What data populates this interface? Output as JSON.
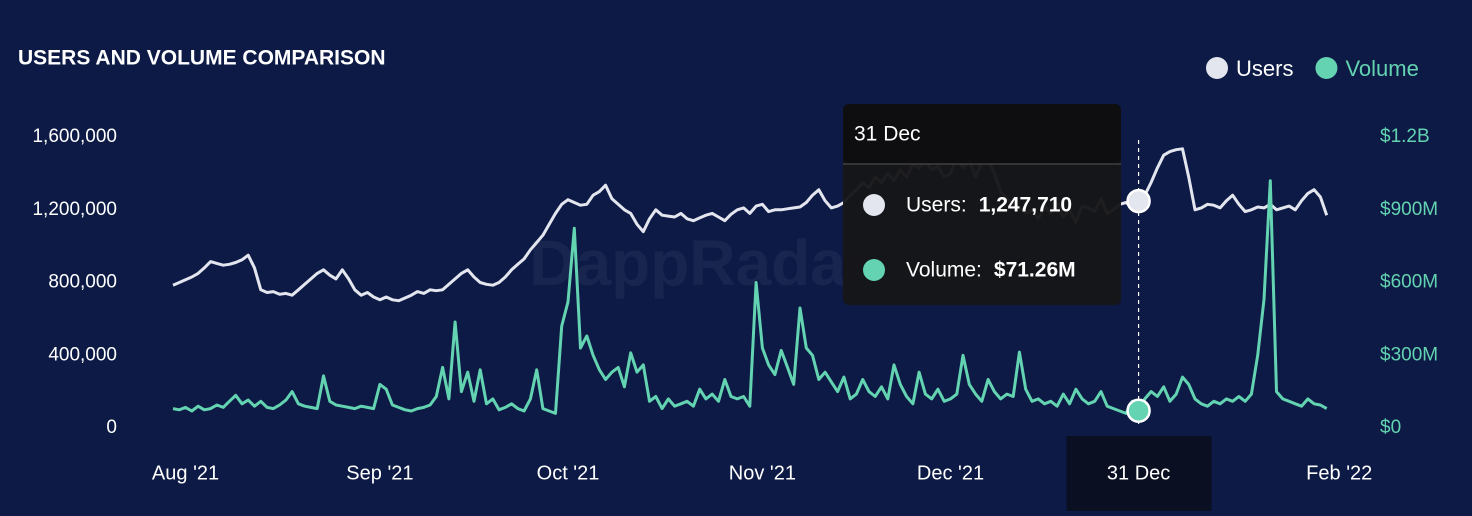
{
  "chart_data": {
    "type": "line",
    "title": "USERS AND VOLUME COMPARISON",
    "watermark": "DappRadar",
    "categories": [
      null,
      null,
      "Aug '21",
      null,
      null,
      null,
      null,
      null,
      null,
      null,
      null,
      null,
      null,
      null,
      null,
      null,
      null,
      null,
      null,
      null,
      null,
      null,
      null,
      null,
      null,
      null,
      null,
      null,
      null,
      null,
      null,
      null,
      null,
      "Sep '21",
      null,
      null,
      null,
      null,
      null,
      null,
      null,
      null,
      null,
      null,
      null,
      null,
      null,
      null,
      null,
      null,
      null,
      null,
      null,
      null,
      null,
      null,
      null,
      null,
      null,
      null,
      null,
      null,
      null,
      "Oct '21",
      null,
      null,
      null,
      null,
      null,
      null,
      null,
      null,
      null,
      null,
      null,
      null,
      null,
      null,
      null,
      null,
      null,
      null,
      null,
      null,
      null,
      null,
      null,
      null,
      null,
      null,
      null,
      null,
      null,
      null,
      "Nov '21",
      null,
      null,
      null,
      null,
      null,
      null,
      null,
      null,
      null,
      null,
      null,
      null,
      null,
      null,
      null,
      null,
      null,
      null,
      null,
      null,
      null,
      null,
      null,
      null,
      null,
      null,
      null,
      null,
      null,
      "Dec '21",
      null,
      null,
      null,
      null,
      null,
      null,
      null,
      null,
      null,
      null,
      null,
      null,
      null,
      null,
      null,
      null,
      null,
      null,
      null,
      null,
      null,
      null,
      null,
      null,
      null,
      null,
      null,
      null,
      null,
      null,
      null,
      null,
      null,
      null,
      null,
      null,
      null,
      null,
      null,
      null,
      null,
      null,
      null,
      null,
      null,
      null,
      null,
      null,
      null,
      null,
      null,
      null,
      null,
      null,
      null,
      null,
      null,
      null,
      null,
      null,
      null,
      "Feb '22"
    ],
    "series": [
      {
        "name": "Users",
        "color": "#e4e6ef",
        "values": [
          785000.0,
          800000.0,
          815000.0,
          830000.0,
          850000.0,
          880000.0,
          915000.0,
          905000.0,
          895000.0,
          900000.0,
          910000.0,
          925000.0,
          950000.0,
          880000.0,
          760000.0,
          745000.0,
          750000.0,
          735000.0,
          740000.0,
          730000.0,
          760000.0,
          790000.0,
          820000.0,
          850000.0,
          870000.0,
          840000.0,
          820000.0,
          870000.0,
          820000.0,
          760000.0,
          730000.0,
          745000.0,
          720000.0,
          705000.0,
          720000.0,
          705000.0,
          700000.0,
          715000.0,
          730000.0,
          750000.0,
          740000.0,
          760000.0,
          755000.0,
          760000.0,
          790000.0,
          820000.0,
          850000.0,
          870000.0,
          830000.0,
          800000.0,
          790000.0,
          785000.0,
          800000.0,
          830000.0,
          870000.0,
          900000.0,
          930000.0,
          980000.0,
          1020000.0,
          1060000.0,
          1120000.0,
          1180000.0,
          1230000.0,
          1255000.0,
          1240000.0,
          1225000.0,
          1230000.0,
          1280000.0,
          1300000.0,
          1335000.0,
          1260000.0,
          1230000.0,
          1200000.0,
          1180000.0,
          1120000.0,
          1080000.0,
          1150000.0,
          1200000.0,
          1170000.0,
          1165000.0,
          1160000.0,
          1180000.0,
          1150000.0,
          1140000.0,
          1155000.0,
          1170000.0,
          1180000.0,
          1160000.0,
          1140000.0,
          1175000.0,
          1200000.0,
          1210000.0,
          1180000.0,
          1220000.0,
          1230000.0,
          1190000.0,
          1200000.0,
          1200000.0,
          1205000.0,
          1210000.0,
          1215000.0,
          1240000.0,
          1280000.0,
          1310000.0,
          1250000.0,
          1210000.0,
          1220000.0,
          1240000.0,
          1280000.0,
          1310000.0,
          1350000.0,
          1320000.0,
          1380000.0,
          1350000.0,
          1400000.0,
          1360000.0,
          1420000.0,
          1380000.0,
          1450000.0,
          1430000.0,
          1470000.0,
          1420000.0,
          1440000.0,
          1380000.0,
          1400000.0,
          1490000.0,
          1430000.0,
          1470000.0,
          1380000.0,
          1460000.0,
          1480000.0,
          1400000.0,
          1300000.0,
          1260000.0,
          1230000.0,
          1210000.0,
          1180000.0,
          1200000.0,
          1150000.0,
          1220000.0,
          1180000.0,
          1240000.0,
          1160000.0,
          1200000.0,
          1130000.0,
          1220000.0,
          1210000.0,
          1190000.0,
          1260000.0,
          1180000.0,
          1200000.0,
          1230000.0,
          1240000.0,
          1210000.0,
          1247710,
          1280000.0,
          1350000.0,
          1430000.0,
          1500000.0,
          1520000.0,
          1530000.0,
          1535000.0,
          1380000.0,
          1200000.0,
          1210000.0,
          1230000.0,
          1225000.0,
          1210000.0,
          1250000.0,
          1280000.0,
          1230000.0,
          1190000.0,
          1200000.0,
          1215000.0,
          1210000.0,
          1230000.0,
          1200000.0,
          1210000.0,
          1220000.0,
          1200000.0,
          1250000.0,
          1290000.0,
          1310000.0,
          1270000.0,
          1170000.0,
          null,
          null
        ]
      },
      {
        "name": "Volume",
        "color": "#63d3b1",
        "axis": "y2",
        "values": [
          80000000.0,
          75000000.0,
          85000000.0,
          70000000.0,
          90000000.0,
          75000000.0,
          80000000.0,
          95000000.0,
          85000000.0,
          110000000.0,
          135000000.0,
          100000000.0,
          115000000.0,
          90000000.0,
          110000000.0,
          85000000.0,
          80000000.0,
          95000000.0,
          115000000.0,
          150000000.0,
          100000000.0,
          90000000.0,
          85000000.0,
          80000000.0,
          215000000.0,
          110000000.0,
          95000000.0,
          90000000.0,
          85000000.0,
          80000000.0,
          90000000.0,
          85000000.0,
          80000000.0,
          180000000.0,
          160000000.0,
          95000000.0,
          85000000.0,
          75000000.0,
          70000000.0,
          80000000.0,
          85000000.0,
          95000000.0,
          130000000.0,
          250000000.0,
          120000000.0,
          437000000.0,
          150000000.0,
          230000000.0,
          110000000.0,
          240000000.0,
          100000000.0,
          120000000.0,
          75000000.0,
          85000000.0,
          100000000.0,
          80000000.0,
          70000000.0,
          120000000.0,
          240000000.0,
          80000000.0,
          70000000.0,
          60000000.0,
          420000000.0,
          520000000.0,
          824000000.0,
          330000000.0,
          380000000.0,
          300000000.0,
          240000000.0,
          200000000.0,
          230000000.0,
          250000000.0,
          170000000.0,
          310000000.0,
          230000000.0,
          260000000.0,
          110000000.0,
          130000000.0,
          80000000.0,
          120000000.0,
          90000000.0,
          100000000.0,
          110000000.0,
          90000000.0,
          160000000.0,
          120000000.0,
          140000000.0,
          110000000.0,
          200000000.0,
          130000000.0,
          120000000.0,
          130000000.0,
          90000000.0,
          600000000.0,
          330000000.0,
          260000000.0,
          220000000.0,
          320000000.0,
          250000000.0,
          180000000.0,
          495000000.0,
          330000000.0,
          300000000.0,
          200000000.0,
          230000000.0,
          190000000.0,
          150000000.0,
          210000000.0,
          120000000.0,
          140000000.0,
          200000000.0,
          150000000.0,
          130000000.0,
          170000000.0,
          120000000.0,
          260000000.0,
          180000000.0,
          130000000.0,
          100000000.0,
          230000000.0,
          140000000.0,
          120000000.0,
          160000000.0,
          110000000.0,
          120000000.0,
          140000000.0,
          300000000.0,
          180000000.0,
          140000000.0,
          110000000.0,
          200000000.0,
          150000000.0,
          120000000.0,
          140000000.0,
          130000000.0,
          313000000.0,
          160000000.0,
          110000000.0,
          120000000.0,
          100000000.0,
          110000000.0,
          90000000.0,
          140000000.0,
          100000000.0,
          160000000.0,
          120000000.0,
          100000000.0,
          110000000.0,
          150000000.0,
          90000000.0,
          80000000.0,
          70000000.0,
          60000000.0,
          110000000.0,
          71260000,
          120000000.0,
          150000000.0,
          130000000.0,
          170000000.0,
          110000000.0,
          140000000.0,
          210000000.0,
          180000000.0,
          120000000.0,
          100000000.0,
          90000000.0,
          110000000.0,
          100000000.0,
          120000000.0,
          110000000.0,
          130000000.0,
          110000000.0,
          140000000.0,
          300000000.0,
          530000000.0,
          1020000000.0,
          150000000.0,
          120000000.0,
          110000000.0,
          100000000.0,
          90000000.0,
          120000000.0,
          100000000.0,
          95000000.0,
          80000000.0,
          null,
          null
        ]
      }
    ],
    "ylim": [
      0,
      1600000
    ],
    "yticks": [
      0,
      {
        "value": 400000,
        "label": "400,000"
      },
      {
        "value": 800000,
        "label": "800,000"
      },
      {
        "value": 1200000,
        "label": "1,200,000"
      },
      {
        "value": 1600000,
        "label": "1,600,000"
      }
    ],
    "y2lim": [
      0,
      1200000000
    ],
    "y2ticks": [
      {
        "value": 0,
        "label": "$0"
      },
      {
        "value": 300000000,
        "label": "$300M"
      },
      {
        "value": 600000000,
        "label": "$600M"
      },
      {
        "value": 900000000,
        "label": "$900M"
      },
      {
        "value": 1200000000,
        "label": "$1.2B"
      }
    ],
    "grid": false,
    "legend": "top-right",
    "tooltip": {
      "index": 154,
      "title": "31 Dec",
      "rows": [
        {
          "name": "Users:",
          "value_label": "1,247,710"
        },
        {
          "name": "Volume:",
          "value_label": "$71.26M"
        }
      ]
    }
  }
}
